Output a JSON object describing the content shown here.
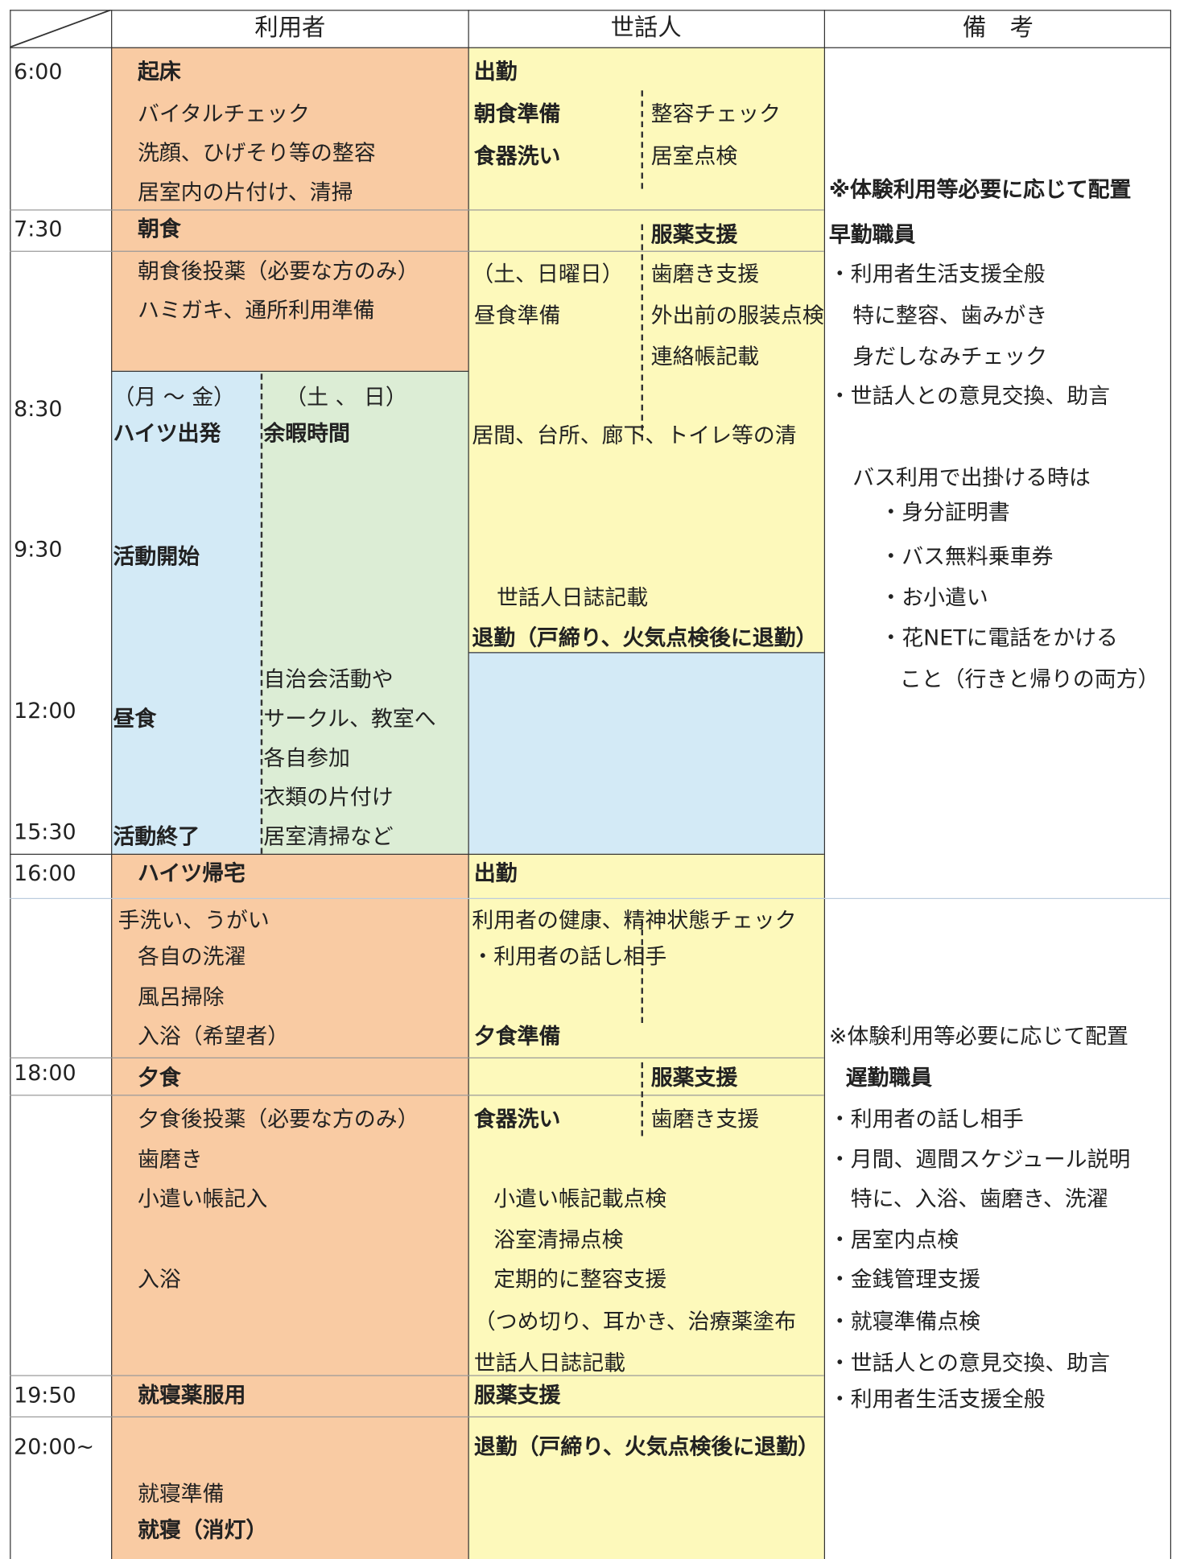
{
  "header": {
    "user": "利用者",
    "staff": "世話人",
    "notes": "備　考"
  },
  "times": [
    "6:00",
    "7:30",
    "8:30",
    "9:30",
    "12:00",
    "15:30",
    "16:00",
    "18:00",
    "19:50",
    "20:00~"
  ],
  "user": [
    "起床",
    "バイタルチェック",
    "洗顔、ひげそり等の整容",
    "居室内の片付け、清掃",
    "朝食",
    "朝食後投薬（必要な方のみ）",
    "ハミガキ、通所利用準備",
    "（月 ～ 金）",
    "（土 、 日）",
    "ハイツ出発",
    "余暇時間",
    "活動開始",
    "自治会活動や",
    "サークル、教室へ",
    "各自参加",
    "衣類の片付け",
    "居室清掃など",
    "昼食",
    "活動終了",
    "ハイツ帰宅",
    "手洗い、うがい",
    "各自の洗濯",
    "風呂掃除",
    "入浴（希望者）",
    "夕食",
    "夕食後投薬（必要な方のみ）",
    "歯磨き",
    "小遣い帳記入",
    "入浴",
    "就寝薬服用",
    "就寝準備",
    "就寝（消灯）"
  ],
  "staff": [
    "出勤",
    "朝食準備",
    "整容チェック",
    "食器洗い",
    "居室点検",
    "服薬支援",
    "（土、日曜日）",
    "歯磨き支援",
    "昼食準備",
    "外出前の服装点検",
    "連絡帳記載",
    "居間、台所、廊下、トイレ等の清",
    "世話人日誌記載",
    "退勤（戸締り、火気点検後に退勤）",
    "出勤",
    "利用者の健康、精神状態チェック",
    "・利用者の話し相手",
    "夕食準備",
    "服薬支援",
    "食器洗い",
    "歯磨き支援",
    "小遣い帳記載点検",
    "浴室清掃点検",
    "定期的に整容支援",
    "（つめ切り、耳かき、治療薬塗布",
    "世話人日誌記載",
    "服薬支援",
    "退勤（戸締り、火気点検後に退勤）"
  ],
  "notes": [
    "※体験利用等必要に応じて配置",
    "早勤職員",
    "・利用者生活支援全般",
    "特に整容、歯みがき",
    "身だしなみチェック",
    "・世話人との意見交換、助言",
    "バス利用で出掛ける時は",
    "・身分証明書",
    "・バス無料乗車券",
    "・お小遣い",
    "・花NETに電話をかける",
    "こと（行きと帰りの両方）",
    "※体験利用等必要に応じて配置",
    "遅勤職員",
    "・利用者の話し相手",
    "・月間、週間スケジュール説明",
    "特に、入浴、歯磨き、洗濯",
    "・居室内点検",
    "・金銭管理支援",
    "・就寝準備点検",
    "・世話人との意見交換、助言",
    "・利用者生活支援全般"
  ]
}
